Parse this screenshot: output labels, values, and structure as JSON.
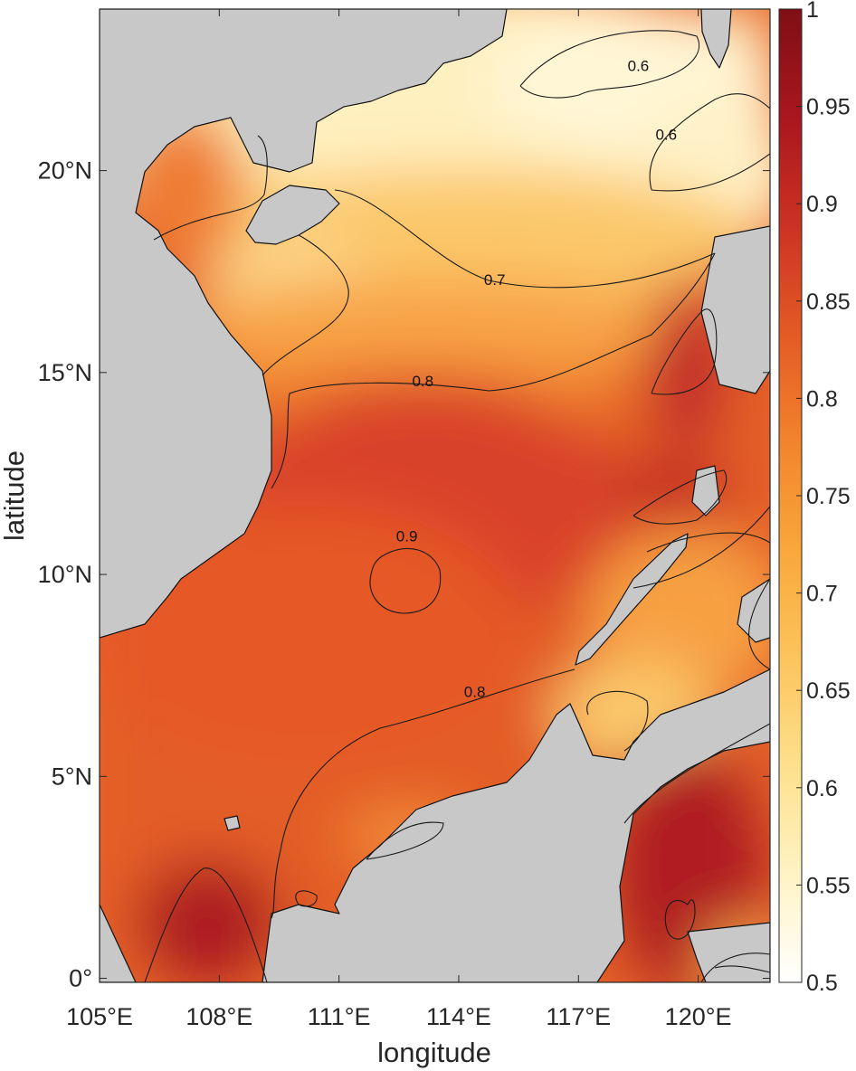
{
  "chart_data": {
    "type": "heatmap",
    "xlabel": "longitude",
    "ylabel": "latitude",
    "xlim": [
      105,
      121.8
    ],
    "ylim": [
      -0.1,
      24
    ],
    "x_ticks": [
      {
        "value": 105,
        "label": "105°E"
      },
      {
        "value": 108,
        "label": "108°E"
      },
      {
        "value": 111,
        "label": "111°E"
      },
      {
        "value": 114,
        "label": "114°E"
      },
      {
        "value": 117,
        "label": "117°E"
      },
      {
        "value": 120,
        "label": "120°E"
      }
    ],
    "y_ticks": [
      {
        "value": 0,
        "label": "0°"
      },
      {
        "value": 5,
        "label": "5°N"
      },
      {
        "value": 10,
        "label": "10°N"
      },
      {
        "value": 15,
        "label": "15°N"
      },
      {
        "value": 20,
        "label": "20°N"
      }
    ],
    "colorbar": {
      "min": 0.5,
      "max": 1,
      "ticks": [
        {
          "value": 0.5,
          "label": "0.5"
        },
        {
          "value": 0.55,
          "label": "0.55"
        },
        {
          "value": 0.6,
          "label": "0.6"
        },
        {
          "value": 0.65,
          "label": "0.65"
        },
        {
          "value": 0.7,
          "label": "0.7"
        },
        {
          "value": 0.75,
          "label": "0.75"
        },
        {
          "value": 0.8,
          "label": "0.8"
        },
        {
          "value": 0.85,
          "label": "0.85"
        },
        {
          "value": 0.9,
          "label": "0.9"
        },
        {
          "value": 0.95,
          "label": "0.95"
        },
        {
          "value": 1,
          "label": "1"
        }
      ],
      "colormap": [
        "#ffffff",
        "#fff3c4",
        "#fde08c",
        "#fcc45c",
        "#f9a73b",
        "#f2832c",
        "#e35a25",
        "#cc3223",
        "#a9161e",
        "#7f0f15"
      ]
    },
    "contour_labels": [
      {
        "text": "0.6",
        "lon": 118.5,
        "lat": 22.6
      },
      {
        "text": "0.6",
        "lon": 119.2,
        "lat": 20.9
      },
      {
        "text": "0.7",
        "lon": 114.9,
        "lat": 17.3
      },
      {
        "text": "0.8",
        "lon": 113.1,
        "lat": 14.8
      },
      {
        "text": "0.9",
        "lon": 112.7,
        "lat": 10.95
      },
      {
        "text": "0.8",
        "lon": 114.4,
        "lat": 7.1
      }
    ],
    "colors": {
      "land": "#c8c8c8",
      "contour": "#1a1a1a",
      "axis": "#262626"
    }
  }
}
